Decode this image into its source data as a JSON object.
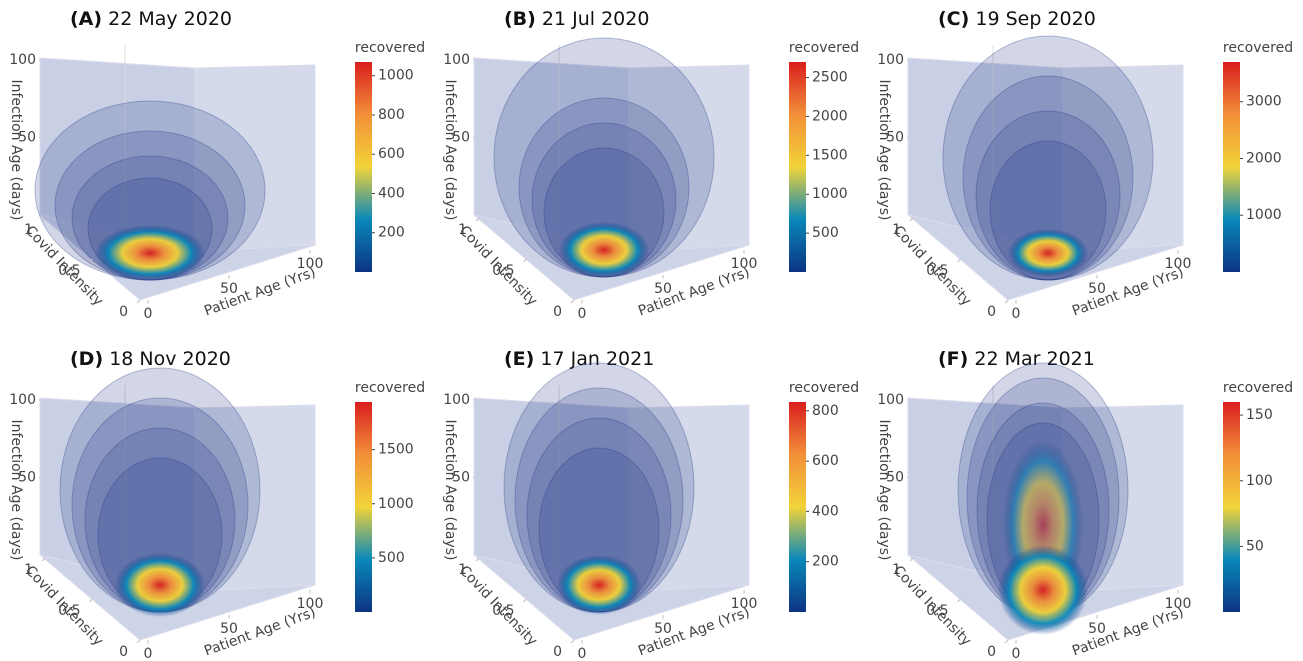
{
  "chart_data": [
    {
      "type": "volume",
      "label": "(A)",
      "title": "22 May 2020",
      "colorbar_title": "recovered",
      "clim": [
        0,
        1070
      ],
      "cticks": [
        200,
        400,
        600,
        800,
        1000
      ],
      "xlabel": "Patient Age (Yrs)",
      "ylabel": "Covid Intensity",
      "zlabel": "Infection Age (days)",
      "xlim": [
        0,
        100
      ],
      "ylim": [
        0,
        1
      ],
      "zlim": [
        0,
        100
      ],
      "xticks": [
        0,
        50,
        100
      ],
      "yticks": [
        0,
        0.5,
        1
      ],
      "zticks": [
        50,
        100
      ],
      "colorscale": [
        "#0c3383",
        "#0a88ba",
        "#f2d338",
        "#f28f38",
        "#d91e1e"
      ]
    },
    {
      "type": "volume",
      "label": "(B)",
      "title": "21 Jul 2020",
      "colorbar_title": "recovered",
      "clim": [
        0,
        2700
      ],
      "cticks": [
        500,
        1000,
        1500,
        2000,
        2500
      ],
      "xlabel": "Patient Age (Yrs)",
      "ylabel": "Covid Intensity",
      "zlabel": "Infection Age (days)",
      "xlim": [
        0,
        100
      ],
      "ylim": [
        0,
        1
      ],
      "zlim": [
        0,
        100
      ],
      "xticks": [
        0,
        50,
        100
      ],
      "yticks": [
        0,
        0.5,
        1
      ],
      "zticks": [
        50,
        100
      ],
      "colorscale": [
        "#0c3383",
        "#0a88ba",
        "#f2d338",
        "#f28f38",
        "#d91e1e"
      ]
    },
    {
      "type": "volume",
      "label": "(C)",
      "title": "19 Sep 2020",
      "colorbar_title": "recovered",
      "clim": [
        0,
        3700
      ],
      "cticks": [
        1000,
        2000,
        3000
      ],
      "xlabel": "Patient Age (Yrs)",
      "ylabel": "Covid Intensity",
      "zlabel": "Infection Age (days)",
      "xlim": [
        0,
        100
      ],
      "ylim": [
        0,
        1
      ],
      "zlim": [
        0,
        100
      ],
      "xticks": [
        0,
        50,
        100
      ],
      "yticks": [
        0,
        0.5,
        1
      ],
      "zticks": [
        50,
        100
      ],
      "colorscale": [
        "#0c3383",
        "#0a88ba",
        "#f2d338",
        "#f28f38",
        "#d91e1e"
      ]
    },
    {
      "type": "volume",
      "label": "(D)",
      "title": "18 Nov 2020",
      "colorbar_title": "recovered",
      "clim": [
        0,
        1940
      ],
      "cticks": [
        500,
        1000,
        1500
      ],
      "xlabel": "Patient Age (Yrs)",
      "ylabel": "Covid Intensity",
      "zlabel": "Infection Age (days)",
      "xlim": [
        0,
        100
      ],
      "ylim": [
        0,
        1
      ],
      "zlim": [
        0,
        100
      ],
      "xticks": [
        0,
        50,
        100
      ],
      "yticks": [
        0,
        0.5,
        1
      ],
      "zticks": [
        50,
        100
      ],
      "colorscale": [
        "#0c3383",
        "#0a88ba",
        "#f2d338",
        "#f28f38",
        "#d91e1e"
      ]
    },
    {
      "type": "volume",
      "label": "(E)",
      "title": "17 Jan 2021",
      "colorbar_title": "recovered",
      "clim": [
        0,
        835
      ],
      "cticks": [
        200,
        400,
        600,
        800
      ],
      "xlabel": "Patient Age (Yrs)",
      "ylabel": "Covid Intensity",
      "zlabel": "Infection Age (days)",
      "xlim": [
        0,
        100
      ],
      "ylim": [
        0,
        1
      ],
      "zlim": [
        0,
        100
      ],
      "xticks": [
        0,
        50,
        100
      ],
      "yticks": [
        0,
        0.5,
        1
      ],
      "zticks": [
        50,
        100
      ],
      "colorscale": [
        "#0c3383",
        "#0a88ba",
        "#f2d338",
        "#f28f38",
        "#d91e1e"
      ]
    },
    {
      "type": "volume",
      "label": "(F)",
      "title": "22 Mar 2021",
      "colorbar_title": "recovered",
      "clim": [
        0,
        160
      ],
      "cticks": [
        50,
        100,
        150
      ],
      "xlabel": "Patient Age (Yrs)",
      "ylabel": "Covid Intensity",
      "zlabel": "Infection Age (days)",
      "xlim": [
        0,
        100
      ],
      "ylim": [
        0,
        1
      ],
      "zlim": [
        0,
        100
      ],
      "xticks": [
        0,
        50,
        100
      ],
      "yticks": [
        0,
        0.5,
        1
      ],
      "zticks": [
        50,
        100
      ],
      "colorscale": [
        "#0c3383",
        "#0a88ba",
        "#f2d338",
        "#f28f38",
        "#d91e1e"
      ]
    }
  ]
}
